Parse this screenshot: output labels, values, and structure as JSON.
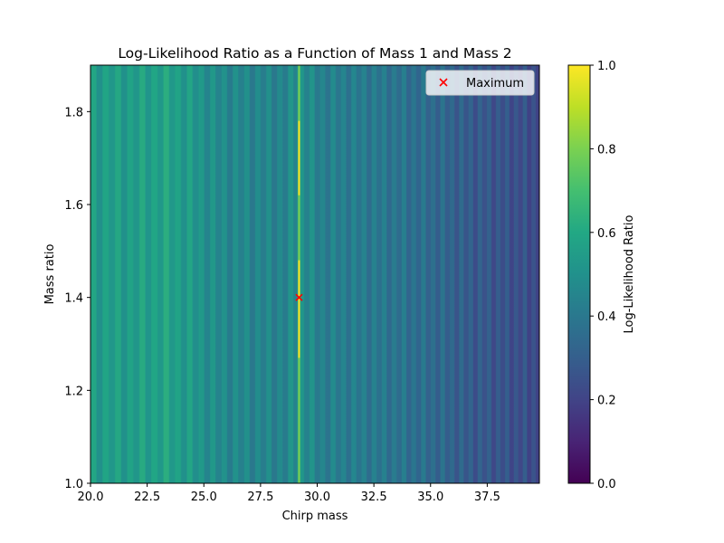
{
  "chart_data": {
    "type": "heatmap",
    "title": "Log-Likelihood Ratio as a Function of Mass 1 and Mass 2",
    "xlabel": "Chirp mass",
    "ylabel": "Mass ratio",
    "xlim": [
      20.0,
      39.8
    ],
    "ylim": [
      1.0,
      1.9
    ],
    "x_ticks": [
      "20.0",
      "22.5",
      "25.0",
      "27.5",
      "30.0",
      "32.5",
      "35.0",
      "37.5"
    ],
    "x_tick_values": [
      20.0,
      22.5,
      25.0,
      27.5,
      30.0,
      32.5,
      35.0,
      37.5
    ],
    "y_ticks": [
      "1.0",
      "1.2",
      "1.4",
      "1.6",
      "1.8"
    ],
    "y_tick_values": [
      1.0,
      1.2,
      1.4,
      1.6,
      1.8
    ],
    "colorscale": "viridis",
    "colorbar": {
      "label": "Log-Likelihood Ratio",
      "range": [
        0.0,
        1.0
      ],
      "ticks": [
        "0.0",
        "0.2",
        "0.4",
        "0.6",
        "0.8",
        "1.0"
      ],
      "tick_values": [
        0.0,
        0.2,
        0.4,
        0.6,
        0.8,
        1.0
      ]
    },
    "background_profile": {
      "x": [
        20.0,
        21.0,
        22.0,
        23.0,
        23.7,
        24.5,
        25.5,
        27.0,
        28.5,
        29.2,
        30.0,
        31.0,
        32.5,
        34.0,
        35.5,
        36.5,
        37.5,
        38.5,
        39.8
      ],
      "value": [
        0.55,
        0.55,
        0.55,
        0.57,
        0.56,
        0.52,
        0.47,
        0.45,
        0.44,
        0.5,
        0.43,
        0.42,
        0.4,
        0.37,
        0.33,
        0.29,
        0.27,
        0.25,
        0.23
      ]
    },
    "peak_ridge": {
      "x": 29.2,
      "value": 1.0
    },
    "maximum_point": {
      "x": 29.2,
      "y": 1.4,
      "label": "Maximum",
      "marker": "x",
      "color": "#ff0000"
    },
    "legend": {
      "entries": [
        "Maximum"
      ],
      "position": "upper right"
    },
    "grid": false
  }
}
